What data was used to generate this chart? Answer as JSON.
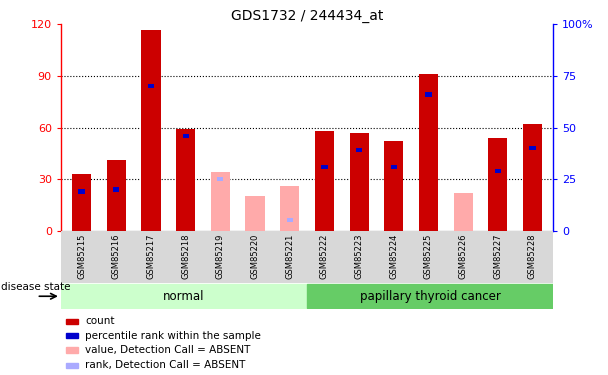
{
  "title": "GDS1732 / 244434_at",
  "samples": [
    "GSM85215",
    "GSM85216",
    "GSM85217",
    "GSM85218",
    "GSM85219",
    "GSM85220",
    "GSM85221",
    "GSM85222",
    "GSM85223",
    "GSM85224",
    "GSM85225",
    "GSM85226",
    "GSM85227",
    "GSM85228"
  ],
  "count_values": [
    33,
    41,
    117,
    59,
    0,
    0,
    0,
    58,
    57,
    52,
    91,
    0,
    54,
    62
  ],
  "rank_values": [
    19,
    20,
    70,
    46,
    0,
    0,
    0,
    31,
    39,
    31,
    66,
    0,
    29,
    40
  ],
  "absent": [
    false,
    false,
    false,
    false,
    true,
    true,
    true,
    false,
    false,
    false,
    false,
    true,
    false,
    false
  ],
  "absent_count": [
    0,
    0,
    0,
    0,
    34,
    20,
    26,
    0,
    0,
    0,
    0,
    22,
    0,
    0
  ],
  "absent_rank": [
    0,
    0,
    0,
    0,
    25,
    0,
    5,
    0,
    0,
    0,
    0,
    0,
    0,
    0
  ],
  "left_ylim": [
    0,
    120
  ],
  "right_ylim": [
    0,
    100
  ],
  "left_yticks": [
    0,
    30,
    60,
    90,
    120
  ],
  "right_yticks": [
    0,
    25,
    50,
    75,
    100
  ],
  "right_yticklabels": [
    "0",
    "25",
    "50",
    "75",
    "100%"
  ],
  "bar_color_present": "#cc0000",
  "bar_color_absent": "#ffaaaa",
  "rank_color_present": "#0000cc",
  "rank_color_absent": "#aaaaff",
  "normal_bg": "#ccffcc",
  "cancer_bg": "#66cc66",
  "sample_bg": "#d8d8d8",
  "bar_width": 0.55,
  "rank_bar_width": 0.18
}
